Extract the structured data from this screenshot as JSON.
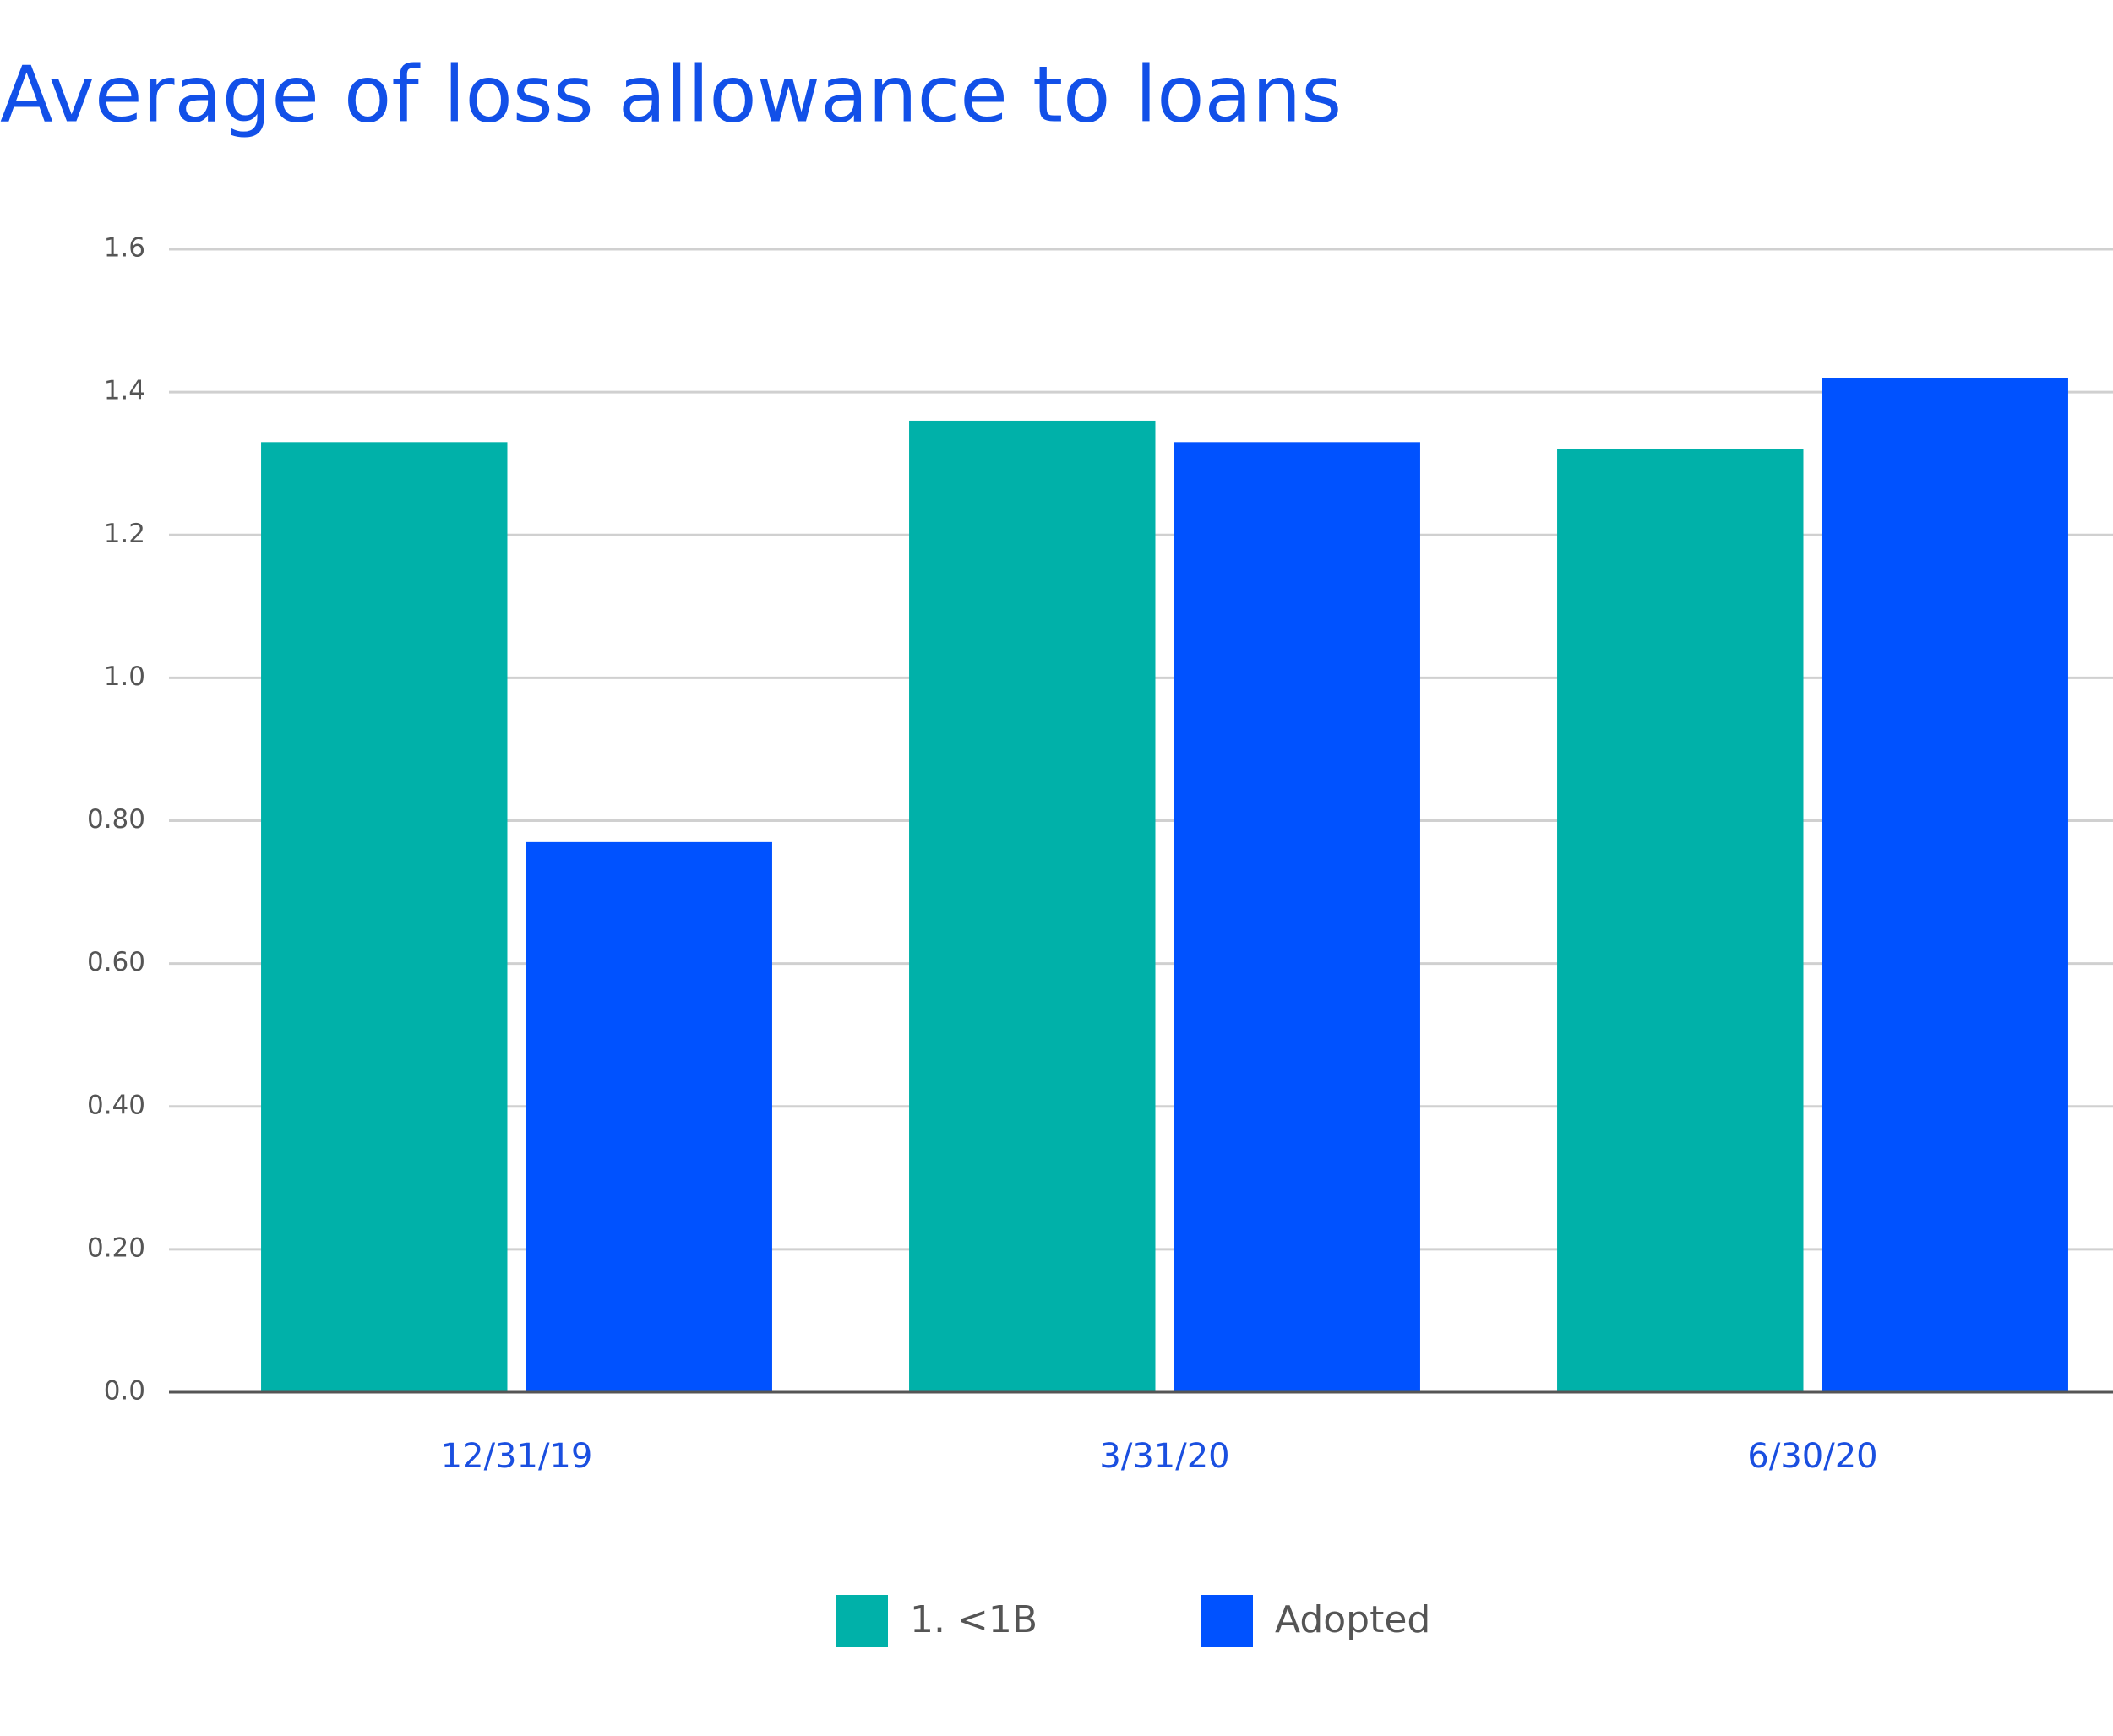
{
  "chart_data": {
    "type": "bar",
    "title": "Average of loss allowance to loans",
    "categories": [
      "12/31/19",
      "3/31/20",
      "6/30/20"
    ],
    "series": [
      {
        "name": "1. <1B",
        "color": "#00b1a9",
        "values": [
          1.33,
          1.36,
          1.32
        ]
      },
      {
        "name": "Adopted",
        "color": "#0052ff",
        "values": [
          0.77,
          1.33,
          1.42
        ]
      }
    ],
    "ylim": [
      0,
      1.6
    ],
    "yticks": [
      {
        "value": 0,
        "label": "0.0"
      },
      {
        "value": 0.2,
        "label": "0.20"
      },
      {
        "value": 0.4,
        "label": "0.40"
      },
      {
        "value": 0.6,
        "label": "0.60"
      },
      {
        "value": 0.8,
        "label": "0.80"
      },
      {
        "value": 1,
        "label": "1.0"
      },
      1.2,
      1.4,
      1.6
    ],
    "grid": true
  }
}
